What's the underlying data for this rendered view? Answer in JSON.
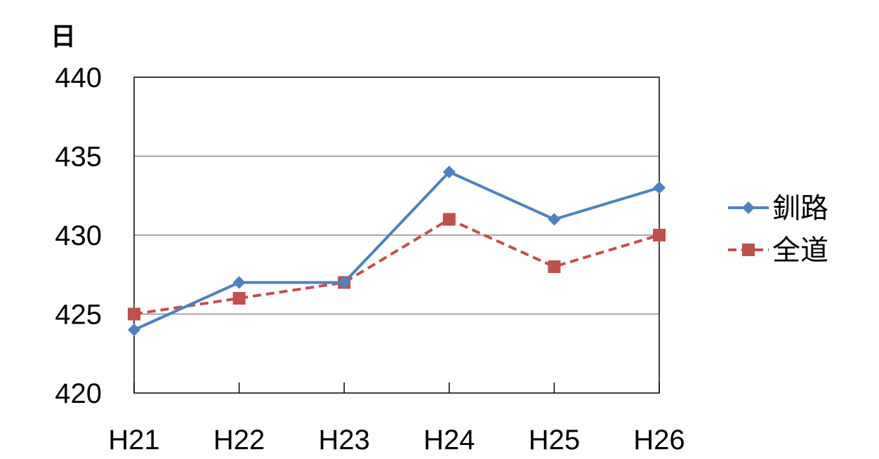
{
  "chart_data": {
    "type": "line",
    "ylabel": "日",
    "categories": [
      "H21",
      "H22",
      "H23",
      "H24",
      "H25",
      "H26"
    ],
    "ylim": [
      420,
      440
    ],
    "yticks": [
      "420",
      "425",
      "430",
      "435",
      "440"
    ],
    "grid": true,
    "legend_position": "right",
    "series": [
      {
        "name": "釧路",
        "values": [
          424,
          427,
          427,
          434,
          431,
          433
        ],
        "color": "#4F81BD",
        "marker": "diamond",
        "dash": "solid"
      },
      {
        "name": "全道",
        "values": [
          425,
          426,
          427,
          431,
          428,
          430
        ],
        "color": "#C0504D",
        "marker": "square",
        "dash": "dashed"
      }
    ]
  }
}
